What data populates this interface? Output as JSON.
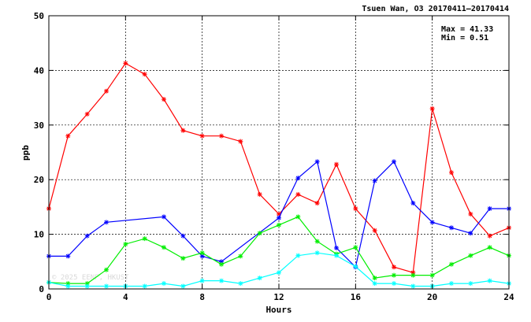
{
  "chart_data": {
    "type": "line",
    "title": "Tsuen Wan, O3 20170411–20170414",
    "xlabel": "Hours",
    "ylabel": "ppb",
    "xlim": [
      0,
      24
    ],
    "ylim": [
      0,
      50
    ],
    "x_ticks": [
      0,
      4,
      8,
      12,
      16,
      20,
      24
    ],
    "y_ticks": [
      0,
      10,
      20,
      30,
      40,
      50
    ],
    "grid": true,
    "stats": {
      "max": "Max = 41.33",
      "min": "Min =  0.51"
    },
    "watermark": "© 2025 EENF, HKUST",
    "series": [
      {
        "color": "#ff0000",
        "x": [
          0,
          1,
          2,
          3,
          4,
          5,
          6,
          7,
          8,
          9,
          10,
          11,
          12,
          13,
          14,
          15,
          16,
          17,
          18,
          19,
          20,
          21,
          22,
          23,
          24
        ],
        "y": [
          14.7,
          28.0,
          32.0,
          36.2,
          41.3,
          39.3,
          34.7,
          29.0,
          28.0,
          28.0,
          27.0,
          17.3,
          13.7,
          17.3,
          15.7,
          22.8,
          14.7,
          10.7,
          4.0,
          3.0,
          33.0,
          21.3,
          13.7,
          9.7,
          11.2
        ]
      },
      {
        "color": "#0000ff",
        "x": [
          0,
          1,
          2,
          3,
          6,
          7,
          8,
          9,
          12,
          13,
          14,
          15,
          16,
          17,
          18,
          19,
          20,
          21,
          22,
          23,
          24
        ],
        "y": [
          6.0,
          6.0,
          9.7,
          12.2,
          13.2,
          9.7,
          6.0,
          5.0,
          13.0,
          20.3,
          23.3,
          7.5,
          4.0,
          19.8,
          23.3,
          15.7,
          12.2,
          11.2,
          10.2,
          14.7,
          14.7
        ]
      },
      {
        "color": "#00ee00",
        "x": [
          0,
          1,
          2,
          3,
          4,
          5,
          6,
          7,
          8,
          9,
          10,
          11,
          12,
          13,
          14,
          15,
          16,
          17,
          18,
          19,
          20,
          21,
          22,
          23,
          24
        ],
        "y": [
          1.2,
          1.0,
          1.0,
          3.5,
          8.2,
          9.2,
          7.6,
          5.6,
          6.6,
          4.5,
          6.0,
          10.2,
          11.7,
          13.2,
          8.7,
          6.4,
          7.6,
          2.0,
          2.5,
          2.5,
          2.5,
          4.5,
          6.1,
          7.6,
          6.1
        ]
      },
      {
        "color": "#00ffff",
        "x": [
          0,
          1,
          2,
          3,
          4,
          5,
          6,
          7,
          8,
          9,
          10,
          11,
          12,
          13,
          14,
          15,
          16,
          17,
          18,
          19,
          20,
          21,
          22,
          23,
          24
        ],
        "y": [
          1.2,
          0.5,
          0.5,
          0.5,
          0.5,
          0.5,
          1.0,
          0.5,
          1.5,
          1.5,
          1.0,
          2.0,
          3.0,
          6.1,
          6.6,
          6.1,
          4.1,
          1.0,
          1.0,
          0.5,
          0.5,
          1.0,
          1.0,
          1.5,
          1.0
        ]
      }
    ]
  }
}
